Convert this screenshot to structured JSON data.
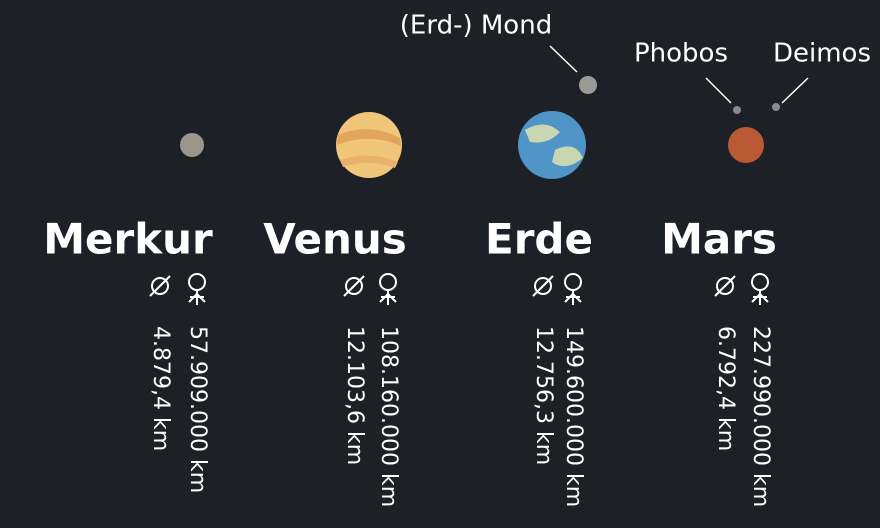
{
  "planets": [
    {
      "name": "Merkur",
      "distance": "57.909.000 km",
      "diameter": "4.879,4 km"
    },
    {
      "name": "Venus",
      "distance": "108.160.000 km",
      "diameter": "12.103,6 km"
    },
    {
      "name": "Erde",
      "distance": "149.600.000 km",
      "diameter": "12.756,3 km"
    },
    {
      "name": "Mars",
      "distance": "227.990.000 km",
      "diameter": "6.792,4 km"
    }
  ],
  "moons": [
    "(Erd-) Mond",
    "Phobos",
    "Deimos"
  ]
}
